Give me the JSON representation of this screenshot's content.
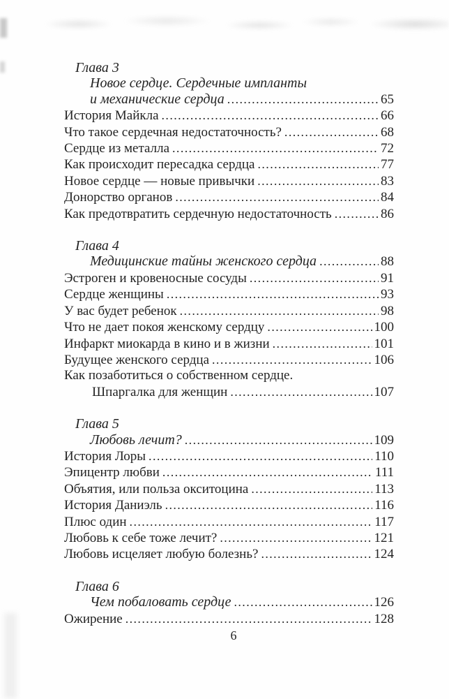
{
  "page": {
    "number": "6"
  },
  "colors": {
    "background": "#fefefe",
    "text": "#232323"
  },
  "toc": {
    "sections": [
      {
        "chapter": "Глава 3",
        "rows": [
          {
            "text": "Новое сердце. Сердечные импланты",
            "style": "chapter-title"
          },
          {
            "text": "и механические сердца",
            "style": "chapter-title",
            "page": "65"
          },
          {
            "text": "История Майкла",
            "style": "entry",
            "page": "66"
          },
          {
            "text": "Что такое сердечная недостаточность?",
            "style": "entry",
            "page": "68"
          },
          {
            "text": "Сердце из металла",
            "style": "entry",
            "page": "72"
          },
          {
            "text": "Как происходит пересадка сердца",
            "style": "entry",
            "page": "77"
          },
          {
            "text": "Новое сердце — новые привычки",
            "style": "entry",
            "page": "83"
          },
          {
            "text": "Донорство органов",
            "style": "entry",
            "page": "84"
          },
          {
            "text": "Как предотвратить сердечную недостаточность",
            "style": "entry",
            "page": "86"
          }
        ]
      },
      {
        "chapter": "Глава 4",
        "rows": [
          {
            "text": "Медицинские тайны женского сердца",
            "style": "chapter-title",
            "page": "88"
          },
          {
            "text": "Эстроген и кровеносные сосуды",
            "style": "entry",
            "page": "91"
          },
          {
            "text": "Сердце женщины",
            "style": "entry",
            "page": "93"
          },
          {
            "text": "У вас будет ребенок",
            "style": "entry",
            "page": "98"
          },
          {
            "text": "Что не дает покоя женскому сердцу",
            "style": "entry",
            "page": "100"
          },
          {
            "text": "Инфаркт миокарда в кино и в жизни",
            "style": "entry",
            "page": "101"
          },
          {
            "text": "Будущее женского сердца",
            "style": "entry",
            "page": "106"
          },
          {
            "text": "Как позаботиться о собственном сердце.",
            "style": "entry"
          },
          {
            "text": "Шпаргалка для женщин",
            "style": "entry-cont",
            "page": "107"
          }
        ]
      },
      {
        "chapter": "Глава 5",
        "rows": [
          {
            "text": "Любовь лечит?",
            "style": "chapter-title",
            "page": "109"
          },
          {
            "text": "История Лоры",
            "style": "entry",
            "page": "110"
          },
          {
            "text": "Эпицентр любви",
            "style": "entry",
            "page": "111"
          },
          {
            "text": "Объятия, или польза окситоцина",
            "style": "entry",
            "page": "113"
          },
          {
            "text": "История Даниэль",
            "style": "entry",
            "page": "116"
          },
          {
            "text": "Плюс один",
            "style": "entry",
            "page": "117"
          },
          {
            "text": "Любовь к себе тоже лечит?",
            "style": "entry",
            "page": "121"
          },
          {
            "text": "Любовь исцеляет любую болезнь?",
            "style": "entry",
            "page": "124"
          }
        ]
      },
      {
        "chapter": "Глава 6",
        "rows": [
          {
            "text": "Чем побаловать сердце",
            "style": "chapter-title",
            "page": "126"
          },
          {
            "text": "Ожирение",
            "style": "entry",
            "page": "128"
          }
        ]
      }
    ]
  }
}
